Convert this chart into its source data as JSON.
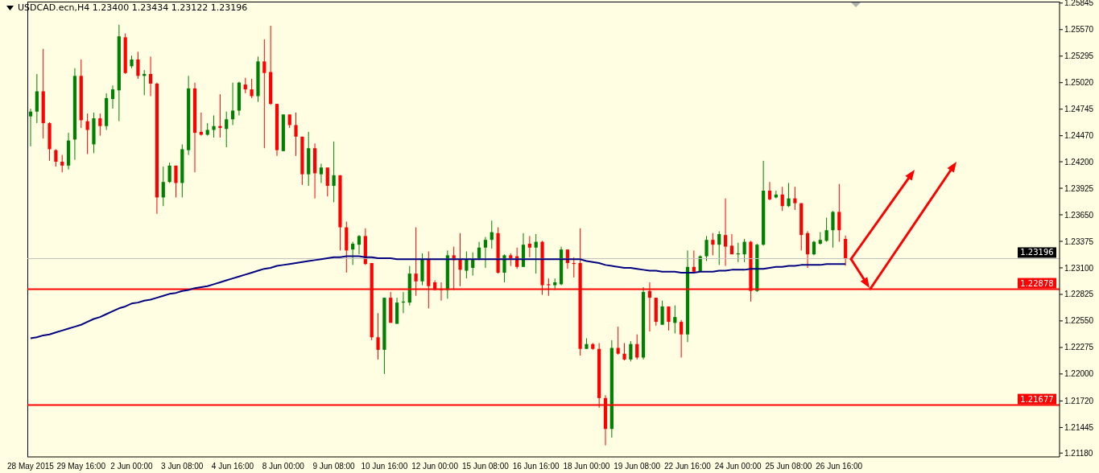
{
  "chart_data": {
    "type": "candlestick",
    "title": "USDCAD.ecn,H4  1.23400 1.23434 1.23122 1.23196",
    "categories": [
      "28 May 2015",
      null,
      null,
      null,
      null,
      null,
      null,
      null,
      "29 May 16:00",
      null,
      null,
      null,
      null,
      null,
      null,
      null,
      "2 Jun 00:00",
      null,
      null,
      null,
      null,
      null,
      null,
      null,
      "3 Jun 08:00",
      null,
      null,
      null,
      null,
      null,
      null,
      null,
      "4 Jun 16:00",
      null,
      null,
      null,
      null,
      null,
      null,
      null,
      "8 Jun 00:00",
      null,
      null,
      null,
      null,
      null,
      null,
      null,
      "9 Jun 08:00",
      null,
      null,
      null,
      null,
      null,
      null,
      null,
      "10 Jun 16:00",
      null,
      null,
      null,
      null,
      null,
      null,
      null,
      "12 Jun 00:00",
      null,
      null,
      null,
      null,
      null,
      null,
      null,
      "15 Jun 08:00",
      null,
      null,
      null,
      null,
      null,
      null,
      null,
      "16 Jun 16:00",
      null,
      null,
      null,
      null,
      null,
      null,
      null,
      "18 Jun 00:00",
      null,
      null,
      null,
      null,
      null,
      null,
      null,
      "19 Jun 08:00",
      null,
      null,
      null,
      null,
      null,
      null,
      null,
      "22 Jun 16:00",
      null,
      null,
      null,
      null,
      null,
      null,
      null,
      "24 Jun 00:00",
      null,
      null,
      null,
      null,
      null,
      null,
      null,
      "25 Jun 08:00",
      null,
      null,
      null,
      null,
      null,
      null,
      null,
      "26 Jun 16:00",
      null
    ],
    "ohlc": [
      [
        1.2467,
        1.2475,
        1.2436,
        1.2472
      ],
      [
        1.2472,
        1.2511,
        1.246,
        1.2493
      ],
      [
        1.2493,
        1.2537,
        1.2444,
        1.246
      ],
      [
        1.246,
        1.2461,
        1.2421,
        1.2433
      ],
      [
        1.2432,
        1.2433,
        1.2415,
        1.242
      ],
      [
        1.242,
        1.2427,
        1.2409,
        1.2416
      ],
      [
        1.2416,
        1.245,
        1.2412,
        1.2442
      ],
      [
        1.2443,
        1.2517,
        1.2422,
        1.2509
      ],
      [
        1.2509,
        1.2526,
        1.2455,
        1.2463
      ],
      [
        1.2462,
        1.247,
        1.2428,
        1.2453
      ],
      [
        1.2438,
        1.2471,
        1.2429,
        1.2465
      ],
      [
        1.2465,
        1.247,
        1.2447,
        1.2457
      ],
      [
        1.2457,
        1.2491,
        1.2453,
        1.2486
      ],
      [
        1.2485,
        1.2499,
        1.2475,
        1.2495
      ],
      [
        1.2494,
        1.2562,
        1.2462,
        1.255
      ],
      [
        1.2549,
        1.2553,
        1.2511,
        1.2512
      ],
      [
        1.2519,
        1.253,
        1.2517,
        1.2526
      ],
      [
        1.2526,
        1.2534,
        1.2506,
        1.2509
      ],
      [
        1.2509,
        1.2515,
        1.2489,
        1.2511
      ],
      [
        1.2511,
        1.2529,
        1.2488,
        1.2501
      ],
      [
        1.2501,
        1.2502,
        1.2366,
        1.2383
      ],
      [
        1.2383,
        1.2415,
        1.2374,
        1.2399
      ],
      [
        1.2399,
        1.2419,
        1.2398,
        1.2416
      ],
      [
        1.2416,
        1.2416,
        1.2383,
        1.2398
      ],
      [
        1.2398,
        1.2438,
        1.2383,
        1.2433
      ],
      [
        1.2432,
        1.2509,
        1.2427,
        1.2496
      ],
      [
        1.2496,
        1.2502,
        1.2409,
        1.245
      ],
      [
        1.2451,
        1.2471,
        1.2447,
        1.2448
      ],
      [
        1.2448,
        1.246,
        1.2447,
        1.2453
      ],
      [
        1.2453,
        1.2468,
        1.2445,
        1.2457
      ],
      [
        1.2457,
        1.249,
        1.2445,
        1.2455
      ],
      [
        1.2454,
        1.2472,
        1.2435,
        1.2464
      ],
      [
        1.2464,
        1.2502,
        1.2458,
        1.2473
      ],
      [
        1.2473,
        1.2503,
        1.2468,
        1.2502
      ],
      [
        1.25,
        1.2507,
        1.2491,
        1.2495
      ],
      [
        1.2495,
        1.2506,
        1.2486,
        1.2488
      ],
      [
        1.2488,
        1.2529,
        1.2482,
        1.2524
      ],
      [
        1.2524,
        1.2547,
        1.2434,
        1.2512
      ],
      [
        1.2513,
        1.2561,
        1.2479,
        1.248
      ],
      [
        1.248,
        1.248,
        1.2426,
        1.2432
      ],
      [
        1.2431,
        1.2469,
        1.2431,
        1.2469
      ],
      [
        1.2469,
        1.2469,
        1.2455,
        1.2458
      ],
      [
        1.2458,
        1.2471,
        1.2426,
        1.2446
      ],
      [
        1.2446,
        1.2446,
        1.2396,
        1.2407
      ],
      [
        1.2407,
        1.2451,
        1.2395,
        1.2434
      ],
      [
        1.2434,
        1.2439,
        1.2382,
        1.2408
      ],
      [
        1.2407,
        1.2418,
        1.2398,
        1.2414
      ],
      [
        1.2414,
        1.2414,
        1.2384,
        1.2395
      ],
      [
        1.2395,
        1.2441,
        1.2378,
        1.2406
      ],
      [
        1.2406,
        1.2406,
        1.2328,
        1.2352
      ],
      [
        1.2352,
        1.2358,
        1.2305,
        1.2328
      ],
      [
        1.2329,
        1.2337,
        1.2313,
        1.2335
      ],
      [
        1.2334,
        1.2344,
        1.2324,
        1.2343
      ],
      [
        1.2343,
        1.2351,
        1.2313,
        1.2314
      ],
      [
        1.2315,
        1.2315,
        1.2235,
        1.2238
      ],
      [
        1.2238,
        1.2263,
        1.2215,
        1.2225
      ],
      [
        1.2225,
        1.2279,
        1.22,
        1.2279
      ],
      [
        1.2279,
        1.2285,
        1.2253,
        1.2253
      ],
      [
        1.2252,
        1.2279,
        1.2252,
        1.2274
      ],
      [
        1.2274,
        1.2285,
        1.2263,
        1.2275
      ],
      [
        1.2274,
        1.2312,
        1.2271,
        1.2304
      ],
      [
        1.2304,
        1.2352,
        1.2281,
        1.2296
      ],
      [
        1.2296,
        1.2325,
        1.2292,
        1.232
      ],
      [
        1.232,
        1.2327,
        1.2268,
        1.2291
      ],
      [
        1.2295,
        1.2297,
        1.2287,
        1.2287
      ],
      [
        1.2288,
        1.2295,
        1.2276,
        1.2287
      ],
      [
        1.2287,
        1.2328,
        1.2278,
        1.2323
      ],
      [
        1.2323,
        1.2332,
        1.2287,
        1.2318
      ],
      [
        1.2319,
        1.2346,
        1.2291,
        1.2308
      ],
      [
        1.2307,
        1.2327,
        1.2299,
        1.2319
      ],
      [
        1.231,
        1.2326,
        1.2302,
        1.2319
      ],
      [
        1.2319,
        1.2337,
        1.2318,
        1.2331
      ],
      [
        1.2331,
        1.2342,
        1.231,
        1.2339
      ],
      [
        1.2339,
        1.2359,
        1.233,
        1.2347
      ],
      [
        1.2346,
        1.2352,
        1.2304,
        1.2305
      ],
      [
        1.2305,
        1.2324,
        1.2295,
        1.2323
      ],
      [
        1.2323,
        1.2325,
        1.2312,
        1.232
      ],
      [
        1.2322,
        1.2331,
        1.2309,
        1.2311
      ],
      [
        1.2311,
        1.2346,
        1.2311,
        1.2334
      ],
      [
        1.2335,
        1.2343,
        1.2321,
        1.2331
      ],
      [
        1.2331,
        1.2345,
        1.2304,
        1.2337
      ],
      [
        1.2337,
        1.2338,
        1.2282,
        1.2292
      ],
      [
        1.2293,
        1.2299,
        1.2281,
        1.2292
      ],
      [
        1.2292,
        1.2299,
        1.2287,
        1.2295
      ],
      [
        1.2293,
        1.2332,
        1.2292,
        1.2329
      ],
      [
        1.2329,
        1.2329,
        1.2309,
        1.2315
      ],
      [
        1.2315,
        1.2321,
        1.23,
        1.2314
      ],
      [
        1.2315,
        1.2351,
        1.2219,
        1.2226
      ],
      [
        1.2226,
        1.2237,
        1.2226,
        1.2231
      ],
      [
        1.2231,
        1.2232,
        1.2225,
        1.2226
      ],
      [
        1.2226,
        1.2232,
        1.2165,
        1.2175
      ],
      [
        1.2175,
        1.2178,
        1.2126,
        1.2143
      ],
      [
        1.2143,
        1.2235,
        1.2134,
        1.2227
      ],
      [
        1.2227,
        1.2249,
        1.222,
        1.2221
      ],
      [
        1.2221,
        1.2232,
        1.2214,
        1.2215
      ],
      [
        1.2215,
        1.2234,
        1.2213,
        1.2231
      ],
      [
        1.2231,
        1.2241,
        1.2215,
        1.2217
      ],
      [
        1.2217,
        1.229,
        1.2215,
        1.2285
      ],
      [
        1.2286,
        1.2295,
        1.2244,
        1.2279
      ],
      [
        1.2279,
        1.2279,
        1.225,
        1.2254
      ],
      [
        1.2251,
        1.2276,
        1.2251,
        1.227
      ],
      [
        1.227,
        1.227,
        1.2245,
        1.2254
      ],
      [
        1.2253,
        1.2271,
        1.2242,
        1.2259
      ],
      [
        1.2254,
        1.2256,
        1.2217,
        1.2241
      ],
      [
        1.2241,
        1.2328,
        1.2233,
        1.2311
      ],
      [
        1.2311,
        1.2328,
        1.2306,
        1.2306
      ],
      [
        1.2306,
        1.2323,
        1.2306,
        1.2322
      ],
      [
        1.2322,
        1.2343,
        1.2317,
        1.2339
      ],
      [
        1.2339,
        1.2346,
        1.2323,
        1.2334
      ],
      [
        1.2334,
        1.2348,
        1.2313,
        1.2345
      ],
      [
        1.2344,
        1.2382,
        1.2312,
        1.2332
      ],
      [
        1.2333,
        1.2345,
        1.2324,
        1.2324
      ],
      [
        1.2324,
        1.2336,
        1.2316,
        1.2325
      ],
      [
        1.2324,
        1.234,
        1.2316,
        1.2337
      ],
      [
        1.2337,
        1.2338,
        1.2275,
        1.2286
      ],
      [
        1.2286,
        1.2335,
        1.2285,
        1.2334
      ],
      [
        1.2334,
        1.2421,
        1.2333,
        1.239
      ],
      [
        1.239,
        1.2399,
        1.238,
        1.2381
      ],
      [
        1.2383,
        1.239,
        1.2382,
        1.2386
      ],
      [
        1.2386,
        1.2394,
        1.2369,
        1.2374
      ],
      [
        1.2374,
        1.2398,
        1.2373,
        1.2382
      ],
      [
        1.2382,
        1.2394,
        1.237,
        1.2377
      ],
      [
        1.2377,
        1.2377,
        1.2328,
        1.2344
      ],
      [
        1.2346,
        1.2348,
        1.231,
        1.2324
      ],
      [
        1.2324,
        1.2338,
        1.2323,
        1.2337
      ],
      [
        1.2335,
        1.2347,
        1.2334,
        1.2339
      ],
      [
        1.2338,
        1.2362,
        1.2337,
        1.2349
      ],
      [
        1.2349,
        1.2369,
        1.2331,
        1.2368
      ],
      [
        1.2368,
        1.2397,
        1.2337,
        1.2349
      ],
      [
        1.234,
        1.23434,
        1.23122,
        1.23196
      ]
    ],
    "series": [
      {
        "type": "line",
        "color": "#000080",
        "values": [
          1.2237,
          1.2238,
          1.224,
          1.2241,
          1.2243,
          1.2245,
          1.2247,
          1.2249,
          1.2251,
          1.2254,
          1.2257,
          1.2259,
          1.2262,
          1.2265,
          1.2268,
          1.227,
          1.2273,
          1.2274,
          1.2276,
          1.2277,
          1.2279,
          1.2281,
          1.2283,
          1.2284,
          1.2286,
          1.2287,
          1.2289,
          1.229,
          1.2291,
          1.2293,
          1.2295,
          1.2297,
          1.2299,
          1.2301,
          1.2303,
          1.2305,
          1.2307,
          1.2309,
          1.231,
          1.2312,
          1.2313,
          1.2314,
          1.2315,
          1.2316,
          1.2317,
          1.2318,
          1.2319,
          1.232,
          1.2321,
          1.2321,
          1.2322,
          1.2322,
          1.2322,
          1.2321,
          1.2321,
          1.232,
          1.232,
          1.232,
          1.2319,
          1.2319,
          1.2319,
          1.2319,
          1.2319,
          1.2319,
          1.2319,
          1.2319,
          1.2319,
          1.2319,
          1.2319,
          1.2319,
          1.2319,
          1.2319,
          1.2319,
          1.2319,
          1.2319,
          1.2319,
          1.2319,
          1.2319,
          1.2319,
          1.2319,
          1.2319,
          1.2319,
          1.2319,
          1.2319,
          1.2319,
          1.2319,
          1.2319,
          1.2319,
          1.2317,
          1.2316,
          1.2315,
          1.2313,
          1.2312,
          1.2311,
          1.231,
          1.231,
          1.2309,
          1.2308,
          1.2307,
          1.2307,
          1.2306,
          1.2306,
          1.2306,
          1.2305,
          1.2305,
          1.2305,
          1.2306,
          1.2306,
          1.2306,
          1.2307,
          1.2307,
          1.2308,
          1.2308,
          1.2308,
          1.2309,
          1.2309,
          1.2309,
          1.231,
          1.2311,
          1.2311,
          1.2312,
          1.2312,
          1.2313,
          1.2313,
          1.2313,
          1.2313,
          1.2314,
          1.2314,
          1.2314,
          1.2314
        ]
      }
    ],
    "ylim": [
      1.2114,
      1.2586
    ],
    "yticks": [
      1.25845,
      {
        "value": 1.2557,
        "label": "1.25570"
      },
      1.25295,
      {
        "value": 1.2502,
        "label": "1.25020"
      },
      1.24745,
      {
        "value": 1.2447,
        "label": "1.24470"
      },
      {
        "value": 1.242,
        "label": "1.24200"
      },
      1.23925,
      {
        "value": 1.2365,
        "label": "1.23650"
      },
      1.23375,
      {
        "value": 1.231,
        "label": "1.23100"
      },
      1.22825,
      {
        "value": 1.2255,
        "label": "1.22550"
      },
      1.22275,
      {
        "value": 1.22,
        "label": "1.22000"
      },
      {
        "value": 1.2172,
        "label": "1.21720"
      },
      1.21445,
      {
        "value": 1.2118,
        "label": "1.21180"
      }
    ],
    "ref_lines": [
      {
        "axis": "y",
        "value": 1.23196,
        "label": "1.23196",
        "color": "#c0c0c0"
      },
      {
        "axis": "y",
        "value": 1.22878,
        "label": "1.22878",
        "color": "#ff0000"
      },
      {
        "axis": "y",
        "value": 1.21677,
        "label": "1.21677",
        "color": "#ff0000"
      }
    ],
    "colors": [
      "#008000",
      "#008000",
      "#ff0000",
      "#ff0000",
      "#ff0000",
      "#ff0000",
      "#008000",
      "#008000",
      "#ff0000",
      "#ff0000",
      "#008000",
      "#ff0000",
      "#008000",
      "#008000",
      "#008000",
      "#ff0000",
      "#008000",
      "#ff0000",
      "#008000",
      "#ff0000",
      "#ff0000",
      "#008000",
      "#008000",
      "#ff0000",
      "#008000",
      "#008000",
      "#ff0000",
      "#ff0000",
      "#008000",
      "#008000",
      "#ff0000",
      "#008000",
      "#008000",
      "#008000",
      "#ff0000",
      "#ff0000",
      "#008000",
      "#ff0000",
      "#ff0000",
      "#ff0000",
      "#008000",
      "#ff0000",
      "#ff0000",
      "#ff0000",
      "#008000",
      "#ff0000",
      "#008000",
      "#ff0000",
      "#008000",
      "#ff0000",
      "#ff0000",
      "#008000",
      "#008000",
      "#ff0000",
      "#ff0000",
      "#ff0000",
      "#008000",
      "#ff0000",
      "#008000",
      "#008000",
      "#008000",
      "#ff0000",
      "#008000",
      "#ff0000",
      "#ff0000",
      "#ff0000",
      "#008000",
      "#ff0000",
      "#ff0000",
      "#008000",
      "#008000",
      "#008000",
      "#008000",
      "#008000",
      "#ff0000",
      "#008000",
      "#ff0000",
      "#ff0000",
      "#008000",
      "#ff0000",
      "#008000",
      "#ff0000",
      "#ff0000",
      "#008000",
      "#008000",
      "#ff0000",
      "#ff0000",
      "#ff0000",
      "#008000",
      "#ff0000",
      "#ff0000",
      "#ff0000",
      "#008000",
      "#ff0000",
      "#ff0000",
      "#008000",
      "#ff0000",
      "#008000",
      "#ff0000",
      "#ff0000",
      "#008000",
      "#ff0000",
      "#008000",
      "#ff0000",
      "#008000",
      "#ff0000",
      "#008000",
      "#008000",
      "#ff0000",
      "#008000",
      "#ff0000",
      "#ff0000",
      "#008000",
      "#008000",
      "#ff0000",
      "#008000",
      "#008000",
      "#ff0000",
      "#008000",
      "#ff0000",
      "#008000",
      "#ff0000",
      "#ff0000",
      "#ff0000",
      "#008000",
      "#008000",
      "#008000",
      "#008000",
      "#ff0000",
      "#ff0000"
    ],
    "tick_labels": "xy"
  }
}
